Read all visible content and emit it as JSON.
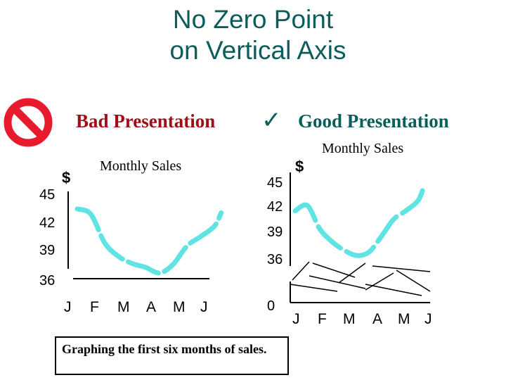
{
  "title_line1": "No Zero Point",
  "title_line2": "on Vertical Axis",
  "bad_heading": "Bad Presentation",
  "good_heading": "Good Presentation",
  "check_glyph": "✓",
  "caption": "Graphing the first six months of sales.",
  "colors": {
    "title": "#0b5d5b",
    "bad": "#9e0e16",
    "line": "#5fe3e3",
    "no_sign": "#e81a2e"
  },
  "icons": [
    "prohibition-icon",
    "checkmark-icon"
  ],
  "chart_data": [
    {
      "type": "line",
      "title": "Monthly Sales",
      "ylabel": "$",
      "categories": [
        "J",
        "F",
        "M",
        "A",
        "M",
        "J"
      ],
      "yticks": [
        "45",
        "42",
        "39",
        "36"
      ],
      "ylim": [
        35.5,
        46
      ],
      "y_starts_at_zero": false,
      "series": [
        {
          "points": [
            [
              0,
              44.5
            ],
            [
              0.5,
              43.8
            ],
            [
              1,
              40.2
            ],
            [
              1.5,
              38.5
            ],
            [
              2,
              37.6
            ],
            [
              2.5,
              37.1
            ],
            [
              3,
              36.4
            ],
            [
              3.5,
              37.5
            ],
            [
              4,
              39.8
            ],
            [
              4.5,
              41.0
            ],
            [
              5,
              42.3
            ],
            [
              5.25,
              44.0
            ]
          ]
        }
      ]
    },
    {
      "type": "line",
      "title": "Monthly Sales",
      "ylabel": "$",
      "categories": [
        "J",
        "F",
        "M",
        "A",
        "M",
        "J"
      ],
      "yticks": [
        "0",
        "36",
        "39",
        "42",
        "45"
      ],
      "axis_break": true,
      "series": [
        {
          "points": [
            [
              0,
              41.6
            ],
            [
              0.5,
              42.2
            ],
            [
              1,
              39.5
            ],
            [
              1.5,
              38.0
            ],
            [
              2,
              37.0
            ],
            [
              2.5,
              36.4
            ],
            [
              3,
              36.8
            ],
            [
              3.5,
              38.6
            ],
            [
              4,
              40.6
            ],
            [
              4.5,
              41.6
            ],
            [
              5,
              42.8
            ],
            [
              5.25,
              44.6
            ]
          ]
        }
      ]
    }
  ]
}
